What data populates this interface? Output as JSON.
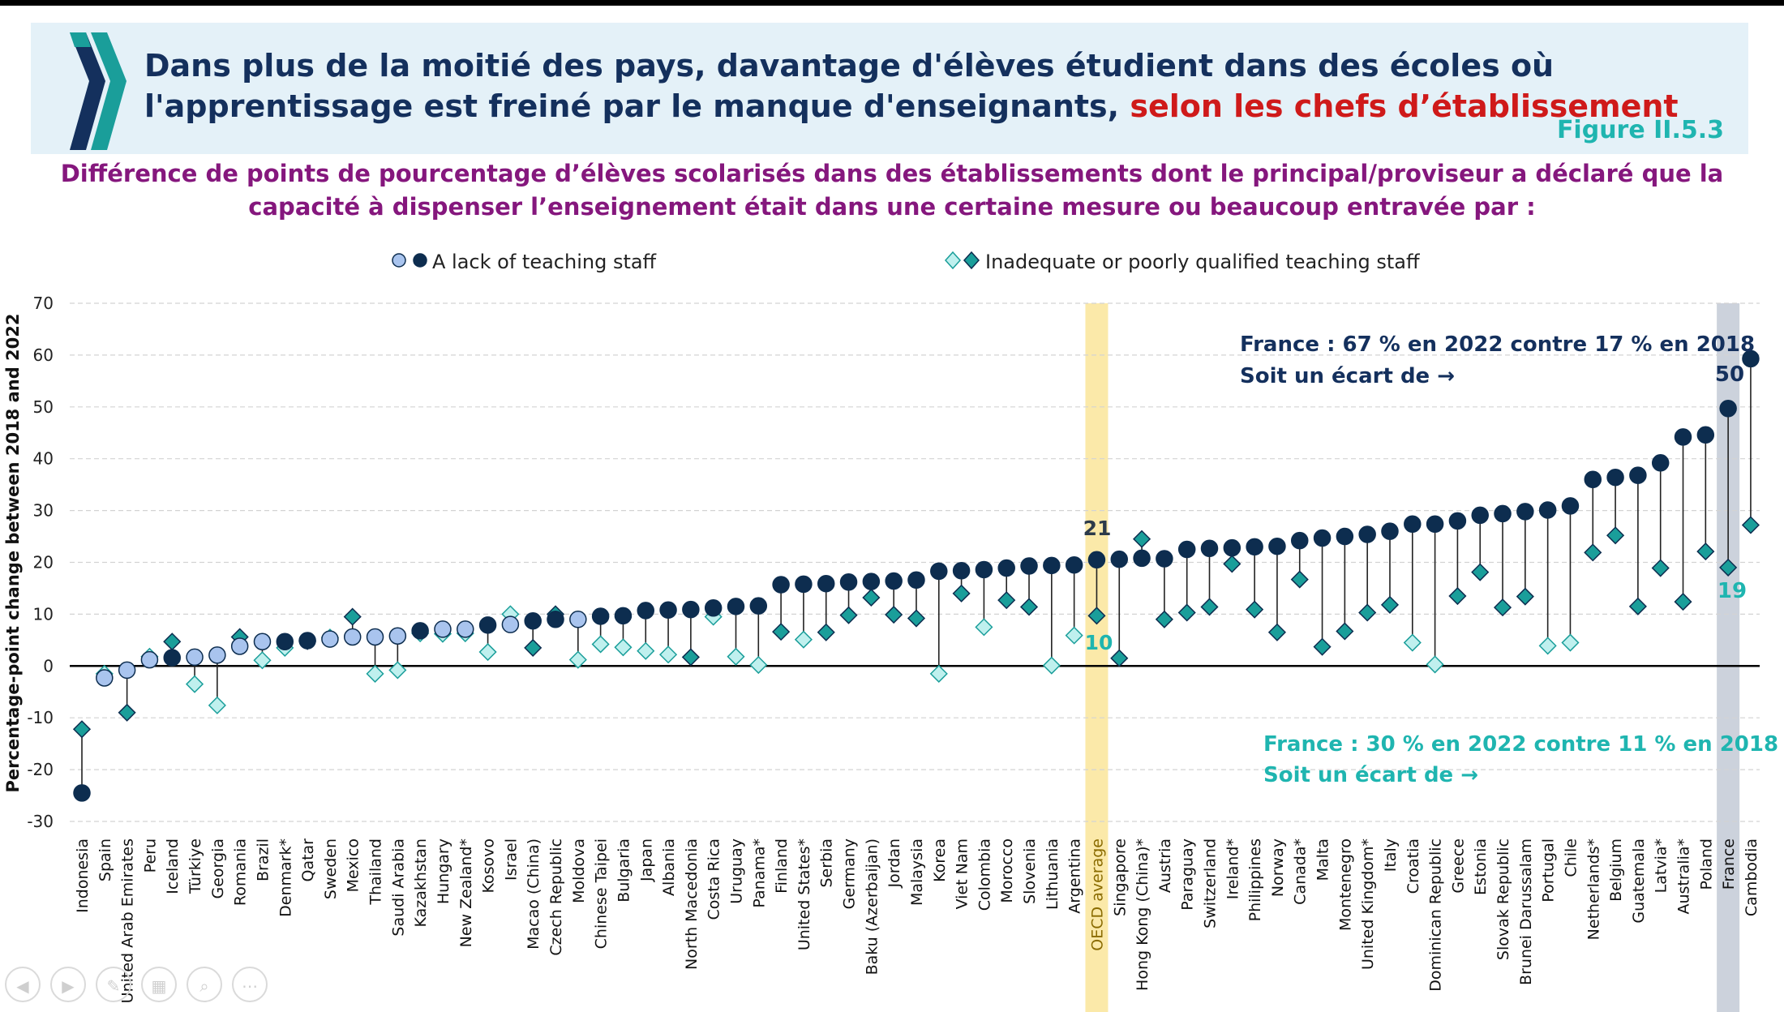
{
  "header": {
    "title_main": "Dans plus de la moitié des pays, davantage d'élèves étudient dans des écoles où l'apprentissage est freiné par le manque d'enseignants,",
    "title_accent": "selon les chefs d’établissement",
    "figure_label": "Figure II.5.3"
  },
  "subtitle": "Différence de points de pourcentage d’élèves scolarisés dans des établissements dont le principal/proviseur a déclaré que la capacité à dispenser l’enseignement était dans une certaine mesure ou beaucoup entravée par :",
  "legend": {
    "series1": "A lack of teaching staff",
    "series2": "Inadequate or poorly qualified teaching staff"
  },
  "annotations": {
    "oecd_lack_value": "21",
    "oecd_inadequate_value": "10",
    "france_lack_value": "50",
    "france_inadequate_value": "19",
    "france_lack_line1": "France : 67 % en 2022 contre 17 % en 2018",
    "france_lack_line2": "Soit un écart de →",
    "france_inadequate_line1": "France : 30 % en 2022 contre 11 % en 2018",
    "france_inadequate_line2": "Soit un écart de →"
  },
  "colors": {
    "lack_significant": "#0d2d4f",
    "lack_not_significant": "#a9c4ee",
    "inadequate_significant": "#1a9e9a",
    "inadequate_not_significant": "#bff0ee",
    "oecd_highlight": "#fbe9a9",
    "france_highlight": "#ccd2dc",
    "title_dark": "#14305d",
    "title_accent": "#cf1a1a",
    "subtitle": "#85177d",
    "figure_label": "#1fb5b0"
  },
  "chart_data": {
    "type": "scatter",
    "ylabel": "Percentage-point change between 2018 and 2022",
    "ylim": [
      -30,
      70
    ],
    "yticks": [
      -30,
      -20,
      -10,
      0,
      10,
      20,
      30,
      40,
      50,
      60,
      70
    ],
    "grid": true,
    "legend_position": "top",
    "categories": [
      "Indonesia",
      "Spain",
      "United Arab Emirates",
      "Peru",
      "Iceland",
      "Türkiye",
      "Georgia",
      "Romania",
      "Brazil",
      "Denmark*",
      "Qatar",
      "Sweden",
      "Mexico",
      "Thailand",
      "Saudi Arabia",
      "Kazakhstan",
      "Hungary",
      "New Zealand*",
      "Kosovo",
      "Israel",
      "Macao (China)",
      "Czech Republic",
      "Moldova",
      "Chinese Taipei",
      "Bulgaria",
      "Japan",
      "Albania",
      "North Macedonia",
      "Costa Rica",
      "Uruguay",
      "Panama*",
      "Finland",
      "United States*",
      "Serbia",
      "Germany",
      "Baku (Azerbaijan)",
      "Jordan",
      "Malaysia",
      "Korea",
      "Viet Nam",
      "Colombia",
      "Morocco",
      "Slovenia",
      "Lithuania",
      "Argentina",
      "OECD average",
      "Singapore",
      "Hong Kong (China)*",
      "Austria",
      "Paraguay",
      "Switzerland",
      "Ireland*",
      "Philippines",
      "Norway",
      "Canada*",
      "Malta",
      "Montenegro",
      "United Kingdom*",
      "Italy",
      "Croatia",
      "Dominican Republic",
      "Greece",
      "Estonia",
      "Slovak Republic",
      "Brunei Darussalam",
      "Portugal",
      "Chile",
      "Netherlands*",
      "Belgium",
      "Guatemala",
      "Latvia*",
      "Australia*",
      "Poland",
      "France",
      "Cambodia"
    ],
    "highlight_categories": [
      "OECD average",
      "France"
    ],
    "series": [
      {
        "name": "A lack of teaching staff",
        "values": [
          -24.5,
          -2.3,
          -0.8,
          1.2,
          1.6,
          1.7,
          2.1,
          3.8,
          4.7,
          4.7,
          4.9,
          5.2,
          5.6,
          5.6,
          5.8,
          6.8,
          7.1,
          7.1,
          7.9,
          8.0,
          8.7,
          9.0,
          9.0,
          9.6,
          9.7,
          10.7,
          10.8,
          10.9,
          11.2,
          11.5,
          11.6,
          15.7,
          15.8,
          15.9,
          16.2,
          16.3,
          16.4,
          16.6,
          18.3,
          18.4,
          18.6,
          18.9,
          19.3,
          19.4,
          19.5,
          20.5,
          20.6,
          20.8,
          20.7,
          22.5,
          22.7,
          22.8,
          23.0,
          23.1,
          24.2,
          24.7,
          25.0,
          25.4,
          26.0,
          27.4,
          27.4,
          28.0,
          29.1,
          29.4,
          29.8,
          30.1,
          30.9,
          36.0,
          36.4,
          36.8,
          39.2,
          44.2,
          44.6,
          49.7,
          59.3
        ],
        "significant": [
          true,
          false,
          false,
          false,
          true,
          false,
          false,
          false,
          false,
          true,
          true,
          false,
          false,
          false,
          false,
          true,
          false,
          false,
          true,
          false,
          true,
          true,
          false,
          true,
          true,
          true,
          true,
          true,
          true,
          true,
          true,
          true,
          true,
          true,
          true,
          true,
          true,
          true,
          true,
          true,
          true,
          true,
          true,
          true,
          true,
          true,
          true,
          true,
          true,
          true,
          true,
          true,
          true,
          true,
          true,
          true,
          true,
          true,
          true,
          true,
          true,
          true,
          true,
          true,
          true,
          true,
          true,
          true,
          true,
          true,
          true,
          true,
          true,
          true,
          true
        ]
      },
      {
        "name": "Inadequate or poorly qualified teaching staff",
        "values": [
          -12.2,
          -1.5,
          -9.0,
          1.8,
          4.7,
          -3.5,
          -7.6,
          5.6,
          1.1,
          3.5,
          4.8,
          5.5,
          9.5,
          -1.5,
          -0.8,
          6.3,
          6.2,
          6.3,
          2.7,
          10.0,
          3.5,
          10.0,
          1.2,
          4.2,
          3.6,
          2.9,
          2.2,
          1.7,
          9.5,
          1.8,
          0.2,
          6.6,
          5.1,
          6.5,
          9.8,
          13.2,
          9.9,
          9.2,
          -1.5,
          14.0,
          7.5,
          12.7,
          11.4,
          0.1,
          5.9,
          9.7,
          1.5,
          24.5,
          9.0,
          10.3,
          11.4,
          19.7,
          10.9,
          6.5,
          16.7,
          3.7,
          6.7,
          10.3,
          11.8,
          4.5,
          0.3,
          13.5,
          18.1,
          11.3,
          13.4,
          3.9,
          4.5,
          21.9,
          25.2,
          11.5,
          18.9,
          12.4,
          22.1,
          19.0,
          27.2
        ],
        "significant": [
          true,
          false,
          true,
          false,
          true,
          false,
          false,
          true,
          false,
          false,
          true,
          false,
          true,
          false,
          false,
          false,
          false,
          false,
          false,
          false,
          true,
          true,
          false,
          false,
          false,
          false,
          false,
          true,
          false,
          false,
          false,
          true,
          false,
          true,
          true,
          true,
          true,
          true,
          false,
          true,
          false,
          true,
          true,
          false,
          false,
          true,
          true,
          true,
          true,
          true,
          true,
          true,
          true,
          true,
          true,
          true,
          true,
          true,
          true,
          false,
          false,
          true,
          true,
          true,
          true,
          false,
          false,
          true,
          true,
          true,
          true,
          true,
          true,
          true,
          true
        ]
      }
    ]
  }
}
